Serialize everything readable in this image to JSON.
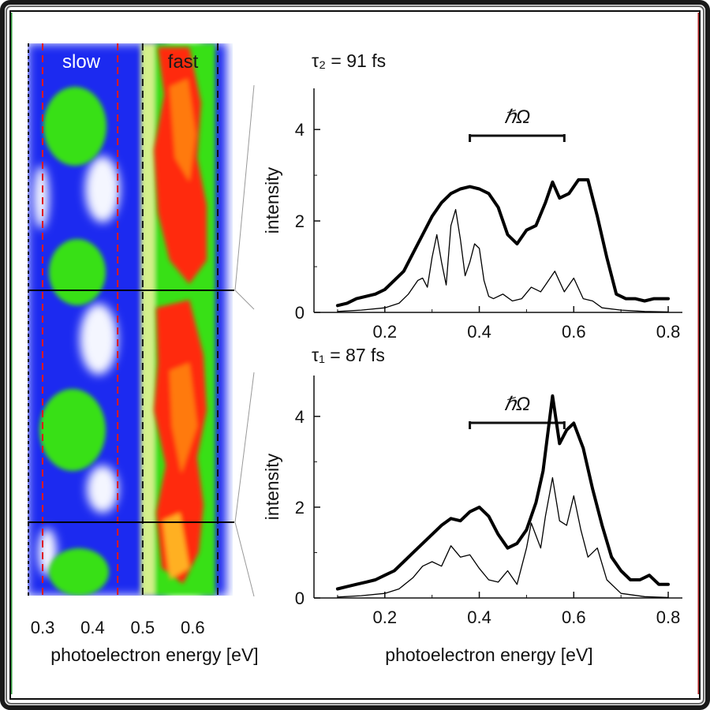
{
  "colors": {
    "frame_outer": "#0c0c0c",
    "frame_green": "#2e9a3a",
    "frame_red": "#b02020",
    "heat_low": "#1e2cf0",
    "heat_mid": "#38e018",
    "heat_high": "#ff2a0a",
    "heat_peak": "#ffe010"
  },
  "heatmap": {
    "label_slow": "slow",
    "label_fast": "fast",
    "xlabel": "photoelectron energy [eV]",
    "xticks": [
      "0.3",
      "0.4",
      "0.5",
      "0.6"
    ],
    "xrange": [
      0.27,
      0.68
    ],
    "marker_lines": [
      {
        "energy": 0.3,
        "color": "red"
      },
      {
        "energy": 0.45,
        "color": "red"
      },
      {
        "energy": 0.5,
        "color": "black"
      },
      {
        "energy": 0.65,
        "color": "black"
      }
    ]
  },
  "chart_data": [
    {
      "type": "line",
      "panel": "top",
      "annotation_tau": "τ₂ = 91 fs",
      "annotation_hbar": "ℏΩ",
      "hbar_range": [
        0.38,
        0.58
      ],
      "xlabel": "photoelectron energy [eV]",
      "ylabel": "intensity",
      "xlim": [
        0.05,
        0.83
      ],
      "ylim": [
        0,
        4.9
      ],
      "xticks": [
        0.2,
        0.4,
        0.6,
        0.8
      ],
      "yticks": [
        0,
        2,
        4
      ],
      "series": [
        {
          "style": "thick",
          "x": [
            0.1,
            0.12,
            0.14,
            0.16,
            0.18,
            0.2,
            0.22,
            0.24,
            0.26,
            0.28,
            0.3,
            0.32,
            0.34,
            0.36,
            0.38,
            0.4,
            0.42,
            0.44,
            0.46,
            0.48,
            0.5,
            0.52,
            0.54,
            0.555,
            0.57,
            0.59,
            0.61,
            0.63,
            0.65,
            0.67,
            0.69,
            0.71,
            0.73,
            0.75,
            0.77,
            0.8
          ],
          "y": [
            0.15,
            0.2,
            0.3,
            0.35,
            0.4,
            0.5,
            0.7,
            0.9,
            1.3,
            1.7,
            2.1,
            2.4,
            2.6,
            2.7,
            2.75,
            2.7,
            2.6,
            2.3,
            1.7,
            1.5,
            1.8,
            1.9,
            2.4,
            2.85,
            2.5,
            2.6,
            2.9,
            2.9,
            2.1,
            1.2,
            0.4,
            0.3,
            0.3,
            0.25,
            0.3,
            0.3
          ]
        },
        {
          "style": "thin",
          "x": [
            0.1,
            0.15,
            0.2,
            0.23,
            0.25,
            0.27,
            0.28,
            0.29,
            0.3,
            0.31,
            0.32,
            0.33,
            0.34,
            0.35,
            0.36,
            0.37,
            0.38,
            0.39,
            0.4,
            0.41,
            0.42,
            0.43,
            0.45,
            0.47,
            0.49,
            0.51,
            0.53,
            0.54,
            0.56,
            0.58,
            0.6,
            0.62,
            0.64,
            0.66,
            0.7,
            0.75,
            0.8
          ],
          "y": [
            0.02,
            0.05,
            0.1,
            0.2,
            0.4,
            0.7,
            0.75,
            0.55,
            1.2,
            1.7,
            1.1,
            0.6,
            1.9,
            2.25,
            1.6,
            0.8,
            1.1,
            1.5,
            1.4,
            0.7,
            0.35,
            0.3,
            0.4,
            0.25,
            0.3,
            0.55,
            0.45,
            0.6,
            0.9,
            0.45,
            0.75,
            0.3,
            0.25,
            0.1,
            0.05,
            0.02,
            0.01
          ]
        }
      ]
    },
    {
      "type": "line",
      "panel": "bottom",
      "annotation_tau": "τ₁ = 87 fs",
      "annotation_hbar": "ℏΩ",
      "hbar_range": [
        0.38,
        0.58
      ],
      "xlabel": "photoelectron energy [eV]",
      "ylabel": "intensity",
      "xlim": [
        0.05,
        0.83
      ],
      "ylim": [
        0,
        4.9
      ],
      "xticks": [
        0.2,
        0.4,
        0.6,
        0.8
      ],
      "yticks": [
        0,
        2,
        4
      ],
      "series": [
        {
          "style": "thick",
          "x": [
            0.1,
            0.12,
            0.14,
            0.16,
            0.18,
            0.2,
            0.22,
            0.24,
            0.26,
            0.28,
            0.3,
            0.32,
            0.34,
            0.36,
            0.38,
            0.4,
            0.42,
            0.44,
            0.46,
            0.48,
            0.5,
            0.52,
            0.535,
            0.555,
            0.57,
            0.585,
            0.6,
            0.62,
            0.64,
            0.66,
            0.68,
            0.7,
            0.72,
            0.74,
            0.76,
            0.78,
            0.8
          ],
          "y": [
            0.2,
            0.25,
            0.3,
            0.35,
            0.4,
            0.5,
            0.6,
            0.8,
            1.0,
            1.2,
            1.4,
            1.6,
            1.75,
            1.7,
            1.9,
            2.0,
            1.8,
            1.4,
            1.1,
            1.2,
            1.5,
            2.1,
            2.8,
            4.45,
            3.4,
            3.7,
            3.85,
            3.3,
            2.4,
            1.6,
            0.9,
            0.6,
            0.4,
            0.4,
            0.5,
            0.3,
            0.3
          ]
        },
        {
          "style": "thin",
          "x": [
            0.1,
            0.15,
            0.2,
            0.23,
            0.26,
            0.28,
            0.3,
            0.32,
            0.34,
            0.36,
            0.38,
            0.4,
            0.42,
            0.44,
            0.46,
            0.48,
            0.5,
            0.51,
            0.53,
            0.54,
            0.555,
            0.57,
            0.585,
            0.6,
            0.615,
            0.63,
            0.65,
            0.67,
            0.7,
            0.75,
            0.8
          ],
          "y": [
            0.02,
            0.05,
            0.1,
            0.2,
            0.45,
            0.7,
            0.8,
            0.7,
            1.15,
            0.9,
            0.95,
            0.65,
            0.4,
            0.35,
            0.6,
            0.3,
            1.1,
            1.65,
            1.1,
            1.8,
            2.65,
            1.7,
            1.6,
            2.25,
            1.5,
            0.9,
            1.1,
            0.4,
            0.1,
            0.03,
            0.01
          ]
        }
      ]
    }
  ]
}
